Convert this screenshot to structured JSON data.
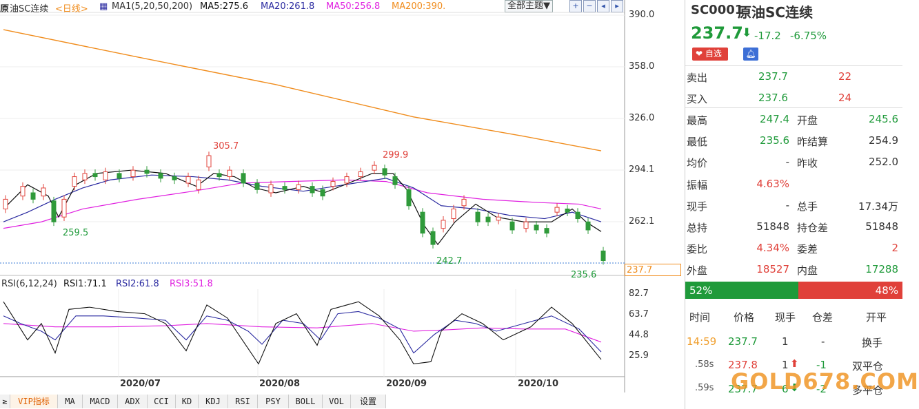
{
  "chart_header": {
    "symbol_prefix": "原",
    "name": "油SC连续",
    "period": "<日线>",
    "ma_label": "MA1(5,20,50,200)",
    "ma5": "MA5:275.6",
    "ma20": "MA20:261.8",
    "ma50": "MA50:256.8",
    "ma200": "MA200:390.",
    "theme_button": "全部主题▼"
  },
  "colors": {
    "ma5": "#111111",
    "ma20": "#2a2aa0",
    "ma50": "#e020e0",
    "ma200": "#f08c1c",
    "up": "#e0413a",
    "down": "#2f9a3a",
    "grid": "#ccc"
  },
  "price_axis": [
    "390.0",
    "358.0",
    "326.0",
    "294.1",
    "262.1"
  ],
  "price_annotations": {
    "high1": "305.7",
    "high2": "299.9",
    "low1": "259.5",
    "low2": "242.7",
    "low3": "235.6"
  },
  "current_price_tag": "237.7",
  "rsi_header": {
    "label": "RSI(6,12,24)",
    "rsi1": "RSI1:71.1",
    "rsi2": "RSI2:61.8",
    "rsi3": "RSI3:51.8"
  },
  "rsi_axis": [
    "82.7",
    "63.7",
    "44.8",
    "25.9"
  ],
  "date_axis": [
    "2020/07",
    "2020/08",
    "2020/09",
    "2020/10"
  ],
  "tabs": [
    {
      "label": "≥"
    },
    {
      "label": "VIP指标"
    },
    {
      "label": "MA"
    },
    {
      "label": "MACD"
    },
    {
      "label": "ADX"
    },
    {
      "label": "CCI"
    },
    {
      "label": "KD"
    },
    {
      "label": "KDJ"
    },
    {
      "label": "RSI"
    },
    {
      "label": "PSY"
    },
    {
      "label": "BOLL"
    },
    {
      "label": "VOL"
    },
    {
      "label": "设置"
    }
  ],
  "quote": {
    "code": "SC0001",
    "name": "原油SC连续",
    "price": "237.7",
    "arrow": "⬇",
    "change": "-17.2",
    "change_pct": "-6.75%",
    "fav_label": "自选",
    "sell_label": "卖出",
    "sell_price": "237.7",
    "sell_vol": "22",
    "buy_label": "买入",
    "buy_price": "237.6",
    "buy_vol": "24",
    "stats": [
      {
        "k1": "最高",
        "v1": "247.4",
        "c1": "green",
        "k2": "开盘",
        "v2": "245.6",
        "c2": "green"
      },
      {
        "k1": "最低",
        "v1": "235.6",
        "c1": "green",
        "k2": "昨结算",
        "v2": "254.9",
        "c2": "grey"
      },
      {
        "k1": "均价",
        "v1": "-",
        "c1": "grey",
        "k2": "昨收",
        "v2": "252.0",
        "c2": "grey"
      },
      {
        "k1": "振幅",
        "v1": "4.63%",
        "c1": "red",
        "k2": "",
        "v2": "",
        "c2": "grey"
      },
      {
        "k1": "现手",
        "v1": "-",
        "c1": "grey",
        "k2": "总手",
        "v2": "17.34万",
        "c2": "grey"
      },
      {
        "k1": "总持",
        "v1": "51848",
        "c1": "grey",
        "k2": "持仓差",
        "v2": "51848",
        "c2": "grey"
      },
      {
        "k1": "委比",
        "v1": "4.34%",
        "c1": "red",
        "k2": "委差",
        "v2": "2",
        "c2": "red"
      },
      {
        "k1": "外盘",
        "v1": "18527",
        "c1": "red",
        "k2": "内盘",
        "v2": "17288",
        "c2": "green"
      }
    ],
    "ratio_left": "52%",
    "ratio_right": "48%",
    "ratio_left_value": 52,
    "trades_header": {
      "time": "时间",
      "price": "价格",
      "vol": "现手",
      "oi": "仓差",
      "type": "开平"
    },
    "trades": [
      {
        "time": "14:59",
        "price": "237.7",
        "vol": "1",
        "arrow": "",
        "oi": "-",
        "type": "换手"
      },
      {
        "time": ".58s",
        "price": "237.8",
        "vol": "1",
        "arrow": "⬆",
        "oi": "-1",
        "type": "双平仓"
      },
      {
        "time": ".59s",
        "price": "237.7",
        "vol": "6",
        "arrow": "⬇",
        "oi": "-2",
        "type": "多平仓"
      }
    ],
    "watermark": "GOLD678.COM"
  }
}
